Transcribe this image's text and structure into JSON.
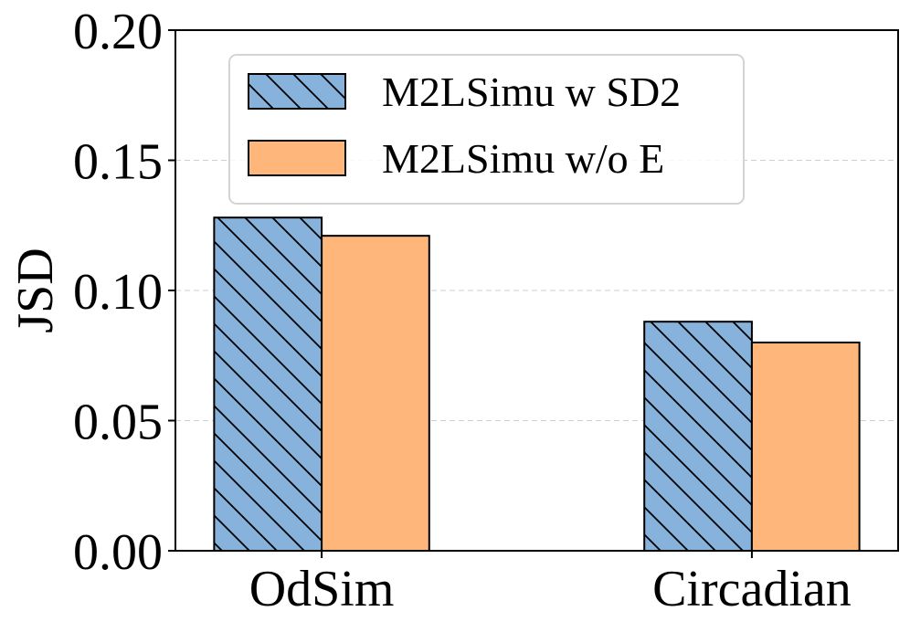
{
  "chart_data": {
    "type": "bar",
    "title": "",
    "xlabel": "",
    "ylabel": "JSD",
    "ylim": [
      0,
      0.2
    ],
    "yticks": [
      "0.00",
      "0.05",
      "0.10",
      "0.15",
      "0.20"
    ],
    "grid": true,
    "categories": [
      "OdSim",
      "Circadian"
    ],
    "series": [
      {
        "name": "M2LSimu w SD2",
        "values": [
          0.128,
          0.088
        ],
        "color": "#86b2dc",
        "hatch": "diagonal"
      },
      {
        "name": "M2LSimu w/o E",
        "values": [
          0.121,
          0.08
        ],
        "color": "#feb67b",
        "hatch": "none"
      }
    ],
    "legend_position": "upper-left"
  }
}
